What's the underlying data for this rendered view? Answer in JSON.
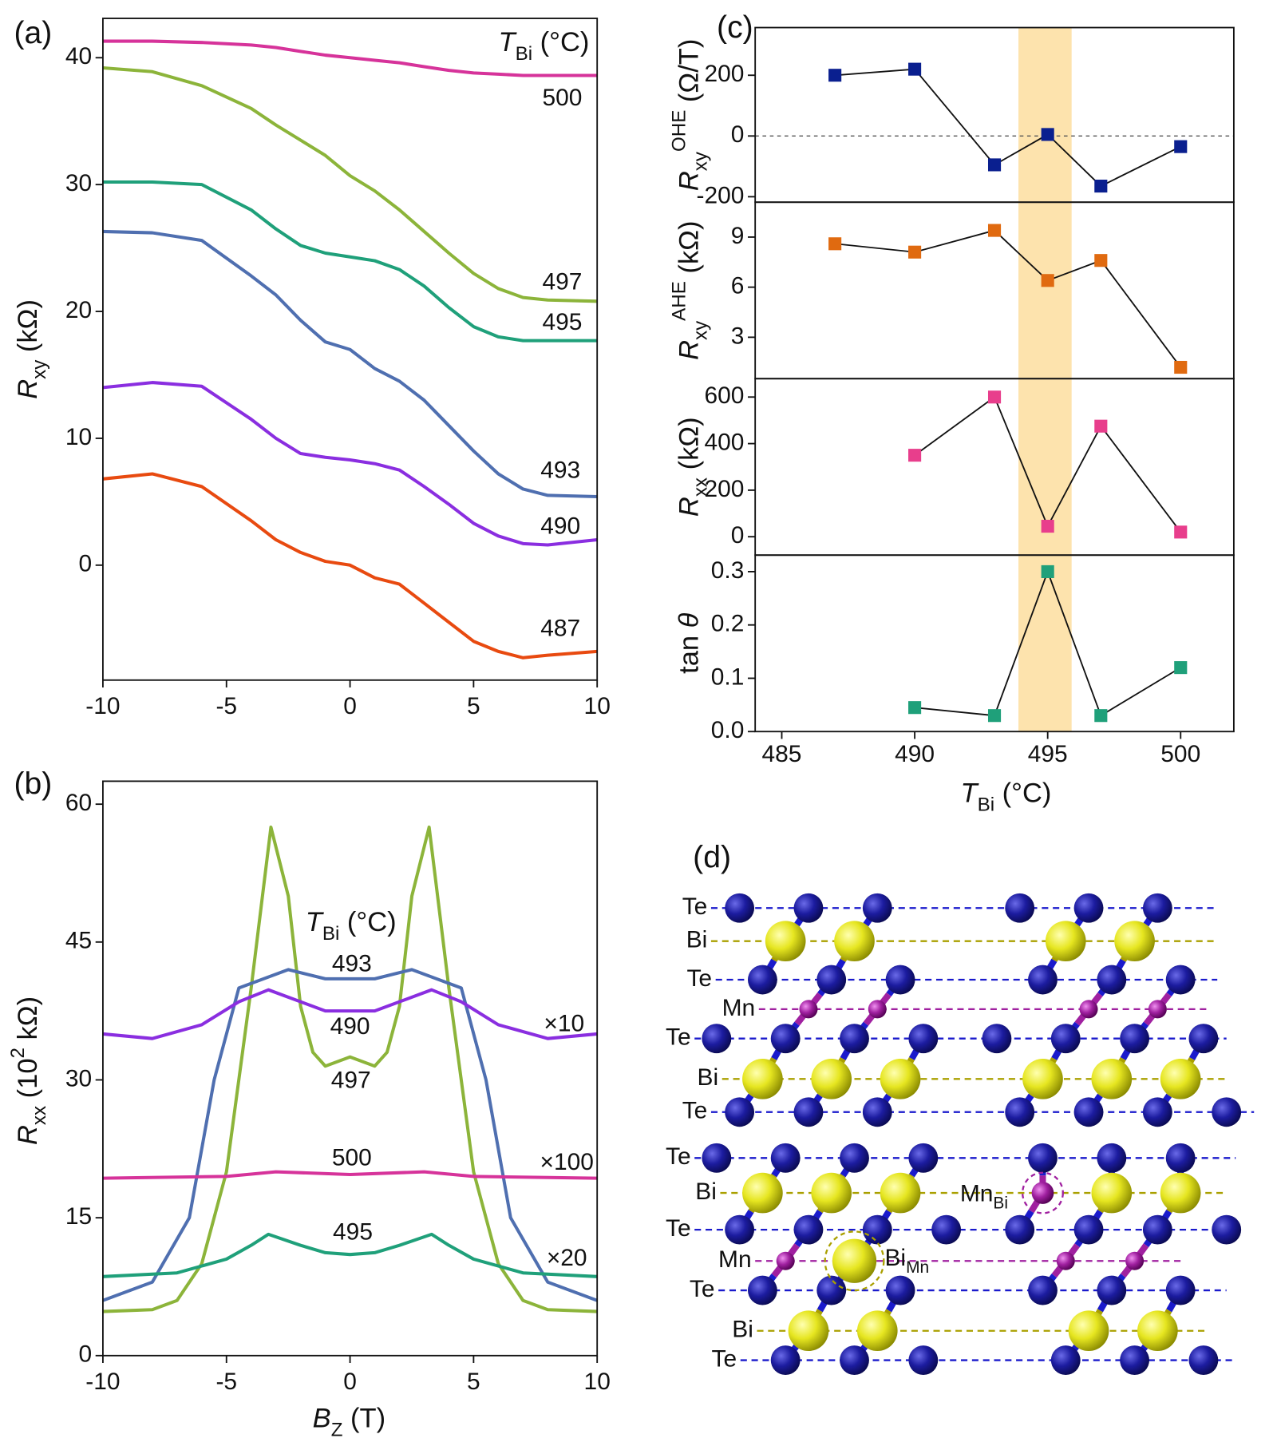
{
  "chart_data": [
    {
      "type": "line",
      "panel": "(a)",
      "legend_title": [
        {
          "text": "T",
          "style": "italic"
        },
        {
          "text": "Bi",
          "style": "sub"
        },
        {
          "text": " (°C)",
          "style": "plain"
        }
      ],
      "y_label": [
        {
          "text": "R",
          "style": "italic"
        },
        {
          "text": "xy",
          "style": "sub"
        },
        {
          "text": " (kΩ)",
          "style": "plain"
        }
      ],
      "xlim": [
        -10,
        10
      ],
      "ylim": [
        -9.06,
        43.1
      ],
      "xticks": [
        -10,
        -5,
        0,
        5,
        10
      ],
      "yticks": [
        0,
        10,
        20,
        30,
        40
      ],
      "series": [
        {
          "name": "500",
          "color": "#d6339a",
          "x": [
            -10,
            -8,
            -6,
            -4,
            -3,
            -2,
            -1,
            0,
            1,
            2,
            3,
            4,
            5,
            6,
            7,
            8,
            10
          ],
          "values": [
            41.3,
            41.3,
            41.2,
            41.0,
            40.8,
            40.5,
            40.2,
            40.0,
            39.8,
            39.6,
            39.3,
            39.0,
            38.8,
            38.7,
            38.6,
            38.6,
            38.6
          ]
        },
        {
          "name": "497",
          "color": "#8cb43a",
          "x": [
            -10,
            -8,
            -6,
            -4,
            -3,
            -2,
            -1,
            0,
            1,
            2,
            3,
            4,
            5,
            6,
            7,
            8,
            10
          ],
          "values": [
            39.2,
            38.9,
            37.8,
            36.0,
            34.7,
            33.5,
            32.3,
            30.7,
            29.5,
            28.0,
            26.3,
            24.6,
            23.0,
            21.8,
            21.1,
            20.9,
            20.8
          ]
        },
        {
          "name": "495",
          "color": "#1fa07a",
          "x": [
            -10,
            -8,
            -6,
            -4,
            -3,
            -2,
            -1,
            0,
            1,
            2,
            3,
            4,
            5,
            6,
            7,
            8,
            10
          ],
          "values": [
            30.2,
            30.2,
            30.0,
            28.0,
            26.5,
            25.2,
            24.6,
            24.3,
            24.0,
            23.3,
            22.0,
            20.3,
            18.8,
            18.0,
            17.7,
            17.7,
            17.7
          ]
        },
        {
          "name": "493",
          "color": "#4f6fb0",
          "x": [
            -10,
            -8,
            -6,
            -4,
            -3,
            -2,
            -1,
            0,
            1,
            2,
            3,
            4,
            5,
            6,
            7,
            8,
            10
          ],
          "values": [
            26.3,
            26.2,
            25.6,
            22.8,
            21.3,
            19.3,
            17.6,
            17.0,
            15.5,
            14.5,
            13.0,
            11.0,
            9.0,
            7.2,
            6.0,
            5.5,
            5.4
          ]
        },
        {
          "name": "490",
          "color": "#8a2ee0",
          "x": [
            -10,
            -8,
            -6,
            -4,
            -3,
            -2,
            -1,
            0,
            1,
            2,
            3,
            4,
            5,
            6,
            7,
            8,
            10
          ],
          "values": [
            14.0,
            14.4,
            14.1,
            11.5,
            10.0,
            8.8,
            8.5,
            8.3,
            8.0,
            7.5,
            6.2,
            4.8,
            3.3,
            2.3,
            1.7,
            1.6,
            2.0
          ]
        },
        {
          "name": "487",
          "color": "#e84a10",
          "x": [
            -10,
            -8,
            -6,
            -4,
            -3,
            -2,
            -1,
            0,
            1,
            2,
            3,
            4,
            5,
            6,
            7,
            8,
            10
          ],
          "values": [
            6.8,
            7.2,
            6.2,
            3.5,
            2.0,
            1.0,
            0.3,
            0.0,
            -1.0,
            -1.5,
            -3.0,
            -4.5,
            -6.0,
            -6.8,
            -7.3,
            -7.1,
            -6.8
          ]
        }
      ]
    },
    {
      "type": "line",
      "panel": "(b)",
      "legend_title": [
        {
          "text": "T",
          "style": "italic"
        },
        {
          "text": "Bi",
          "style": "sub"
        },
        {
          "text": " (°C)",
          "style": "plain"
        }
      ],
      "y_label": [
        {
          "text": "R",
          "style": "italic"
        },
        {
          "text": "xx",
          "style": "sub"
        },
        {
          "text": " (10",
          "style": "plain"
        },
        {
          "text": "2",
          "style": "sup"
        },
        {
          "text": " kΩ)",
          "style": "plain"
        }
      ],
      "x_label": [
        {
          "text": "B",
          "style": "italic"
        },
        {
          "text": "Z",
          "style": "sub"
        },
        {
          "text": " (T)",
          "style": "plain"
        }
      ],
      "xlim": [
        -10,
        10
      ],
      "ylim": [
        0,
        62.5
      ],
      "xticks": [
        -10,
        -5,
        0,
        5,
        10
      ],
      "yticks": [
        0,
        15,
        30,
        45,
        60
      ],
      "series": [
        {
          "name": "497",
          "color": "#8cb43a",
          "x": [
            -10,
            -8,
            -7,
            -6,
            -5,
            -4,
            -3.2,
            -2.5,
            -2,
            -1.5,
            -1,
            0,
            1,
            1.5,
            2,
            2.5,
            3.2,
            4,
            5,
            6,
            7,
            8,
            10
          ],
          "values": [
            4.8,
            5,
            6,
            10,
            20,
            40,
            57.5,
            50,
            38,
            33,
            31.5,
            32.5,
            31.5,
            33,
            38,
            50,
            57.5,
            40,
            20,
            10,
            6,
            5,
            4.8
          ]
        },
        {
          "name": "493",
          "color": "#4f6fb0",
          "x": [
            -10,
            -8,
            -6.5,
            -5.5,
            -4.5,
            -3.5,
            -2.5,
            -1,
            0,
            1,
            2.5,
            3.5,
            4.5,
            5.5,
            6.5,
            8,
            10
          ],
          "values": [
            6,
            8,
            15,
            30,
            40,
            41,
            42,
            41,
            41,
            41,
            42,
            41,
            40,
            30,
            15,
            8,
            6
          ]
        },
        {
          "name": "490",
          "color": "#8a2ee0",
          "annotation": "×10",
          "x": [
            -10,
            -8,
            -6,
            -4.5,
            -3.3,
            -2,
            -1,
            0,
            1,
            2,
            3.3,
            4.5,
            6,
            8,
            10
          ],
          "values": [
            35,
            34.5,
            36,
            38.5,
            39.8,
            38.5,
            37.5,
            37.5,
            37.5,
            38.5,
            39.8,
            38.5,
            36,
            34.5,
            35
          ]
        },
        {
          "name": "500",
          "color": "#d6339a",
          "annotation": "×100",
          "x": [
            -10,
            -5,
            -3,
            0,
            3,
            5,
            10
          ],
          "values": [
            19.3,
            19.5,
            20,
            19.7,
            20,
            19.5,
            19.3
          ]
        },
        {
          "name": "495",
          "color": "#1fa07a",
          "annotation": "×20",
          "x": [
            -10,
            -7,
            -5,
            -4,
            -3.3,
            -2,
            -1,
            0,
            1,
            2,
            3.3,
            4,
            5,
            7,
            10
          ],
          "values": [
            8.6,
            9,
            10.5,
            12,
            13.2,
            12,
            11.2,
            11,
            11.2,
            12,
            13.2,
            12,
            10.5,
            9,
            8.6
          ]
        }
      ]
    },
    {
      "type": "line",
      "panel": "(c)",
      "x_label": [
        {
          "text": "T",
          "style": "italic"
        },
        {
          "text": "Bi",
          "style": "sub"
        },
        {
          "text": " (°C)",
          "style": "plain"
        }
      ],
      "xlim": [
        484,
        502
      ],
      "xticks": [
        485,
        490,
        495,
        500
      ],
      "highlight": [
        493.9,
        495.9
      ],
      "highlight_color": "#fde3ad",
      "subplots": [
        {
          "y_label": [
            {
              "text": "R",
              "style": "italic"
            },
            {
              "text": "xy",
              "style": "sub"
            },
            {
              "text": "OHE",
              "style": "sup"
            },
            {
              "text": " (Ω/T)",
              "style": "plain"
            }
          ],
          "color": "#0a1f8f",
          "zero_line": true,
          "ylim": [
            -218,
            357
          ],
          "yticks": [
            -200,
            0,
            200
          ],
          "x": [
            487,
            490,
            493,
            495,
            497,
            500
          ],
          "values": [
            200,
            220,
            -95,
            5,
            -165,
            -35
          ]
        },
        {
          "y_label": [
            {
              "text": "R",
              "style": "italic"
            },
            {
              "text": "xy",
              "style": "sub"
            },
            {
              "text": "AHE",
              "style": "sup"
            },
            {
              "text": " (kΩ)",
              "style": "plain"
            }
          ],
          "color": "#e06a10",
          "ylim": [
            0.52,
            11.09
          ],
          "yticks": [
            3,
            6,
            9
          ],
          "x": [
            487,
            490,
            493,
            495,
            497,
            500
          ],
          "values": [
            8.6,
            8.1,
            9.4,
            6.4,
            7.6,
            1.2
          ]
        },
        {
          "y_label": [
            {
              "text": "R",
              "style": "italic"
            },
            {
              "text": "xx",
              "style": "sub"
            },
            {
              "text": " (kΩ)",
              "style": "plain"
            }
          ],
          "color": "#e83e8c",
          "ylim": [
            -79,
            679
          ],
          "yticks": [
            0,
            200,
            400,
            600
          ],
          "x": [
            490,
            493,
            495,
            497,
            500
          ],
          "values": [
            350,
            600,
            45,
            475,
            20
          ]
        },
        {
          "y_label": [
            {
              "text": "tan ",
              "style": "plain"
            },
            {
              "text": "θ",
              "style": "italic"
            }
          ],
          "color": "#1fa07a",
          "ylim": [
            0,
            0.331
          ],
          "yticks": [
            {
              "value": 0,
              "label": "0.0"
            },
            0.1,
            0.2,
            0.3
          ],
          "x": [
            490,
            493,
            495,
            497,
            500
          ],
          "values": [
            0.045,
            0.03,
            0.3,
            0.03,
            0.12
          ]
        }
      ]
    }
  ],
  "diagram": {
    "panel": "(d)",
    "top_layers": [
      "Te",
      "Bi",
      "Te",
      "Mn",
      "Te",
      "Bi",
      "Te"
    ],
    "bottom_layers": [
      "Te",
      "Bi",
      "Te",
      "Mn",
      "Te",
      "Bi",
      "Te"
    ],
    "defects": [
      [
        {
          "text": "Mn",
          "style": "plain"
        },
        {
          "text": "Bi",
          "style": "sub"
        }
      ],
      [
        {
          "text": "Bi",
          "style": "plain"
        },
        {
          "text": "Mn",
          "style": "sub"
        }
      ]
    ]
  }
}
